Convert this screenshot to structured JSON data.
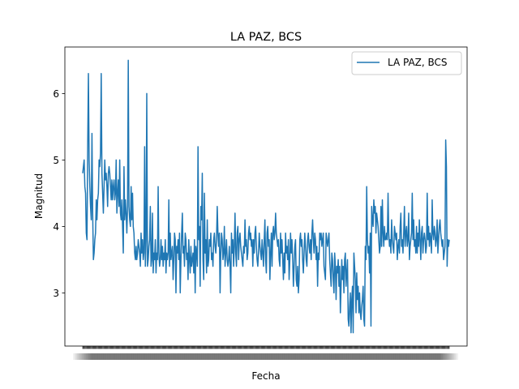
{
  "chart_data": {
    "type": "line",
    "title": "LA PAZ, BCS",
    "xlabel": "Fecha",
    "ylabel": "Magnitud",
    "ylim": [
      2.2,
      6.7
    ],
    "yticks": [
      3,
      4,
      5,
      6
    ],
    "grid": false,
    "legend": "top-right",
    "x_tick_labels_overlapping": true,
    "series": [
      {
        "name": "LA PAZ, BCS",
        "color": "#1f77b4",
        "values": [
          4.8,
          4.9,
          5.0,
          4.6,
          4.5,
          3.9,
          3.8,
          5.2,
          6.3,
          5.0,
          4.6,
          4.3,
          4.1,
          5.4,
          4.2,
          3.5,
          3.6,
          3.8,
          3.9,
          4.4,
          4.1,
          4.4,
          4.5,
          5.0,
          4.9,
          5.1,
          6.3,
          4.8,
          4.5,
          4.2,
          4.6,
          5.0,
          4.7,
          4.8,
          4.6,
          4.3,
          4.8,
          4.9,
          4.8,
          4.6,
          4.4,
          4.7,
          4.4,
          4.6,
          4.7,
          4.4,
          4.5,
          5.0,
          4.2,
          4.5,
          4.7,
          4.3,
          5.0,
          4.2,
          4.1,
          4.4,
          4.0,
          3.6,
          4.9,
          4.1,
          4.4,
          4.2,
          3.9,
          4.3,
          6.5,
          4.3,
          4.1,
          4.0,
          4.6,
          4.1,
          4.5,
          4.0,
          3.9,
          3.6,
          3.5,
          3.7,
          3.5,
          3.6,
          3.8,
          3.7,
          3.6,
          3.4,
          3.9,
          3.6,
          3.8,
          3.5,
          3.6,
          5.2,
          3.4,
          3.8,
          6.0,
          3.4,
          3.5,
          3.7,
          3.8,
          4.3,
          3.4,
          3.5,
          4.2,
          3.3,
          3.6,
          3.5,
          3.8,
          3.3,
          3.6,
          3.5,
          4.6,
          3.6,
          3.4,
          3.5,
          3.8,
          3.5,
          3.7,
          3.4,
          3.6,
          3.5,
          3.8,
          3.3,
          3.6,
          3.5,
          3.6,
          4.4,
          3.4,
          3.9,
          3.5,
          3.6,
          3.7,
          3.2,
          3.5,
          3.9,
          3.8,
          3.0,
          3.7,
          3.6,
          3.8,
          3.5,
          3.9,
          3.0,
          3.5,
          3.9,
          4.2,
          3.6,
          3.7,
          3.4,
          3.9,
          3.8,
          3.5,
          3.6,
          3.2,
          3.8,
          3.5,
          3.3,
          3.7,
          3.4,
          3.5,
          3.6,
          3.3,
          3.8,
          3.0,
          3.7,
          3.6,
          3.4,
          5.2,
          3.8,
          4.0,
          3.1,
          4.3,
          4.1,
          4.8,
          3.5,
          3.2,
          4.5,
          3.6,
          3.8,
          3.3,
          4.1,
          3.4,
          3.5,
          3.8,
          3.7,
          3.9,
          3.5,
          3.6,
          3.4,
          3.8,
          3.9,
          3.7,
          3.6,
          3.8,
          4.3,
          3.9,
          3.7,
          3.9,
          3.0,
          3.6,
          3.9,
          3.8,
          3.5,
          3.6,
          4.0,
          3.4,
          3.6,
          3.8,
          3.5,
          3.4,
          3.5,
          3.7,
          3.4,
          3.0,
          3.9,
          3.6,
          3.8,
          3.4,
          3.7,
          4.2,
          3.6,
          3.4,
          3.9,
          4.0,
          3.5,
          3.8,
          3.9,
          3.7,
          3.6,
          3.5,
          3.4,
          3.7,
          3.6,
          4.1,
          3.7,
          3.8,
          3.5,
          3.6,
          3.9,
          4.0,
          3.8,
          3.9,
          3.7,
          3.8,
          3.4,
          3.8,
          3.6,
          3.9,
          4.0,
          3.7,
          3.5,
          3.4,
          3.6,
          3.9,
          3.7,
          3.6,
          3.5,
          3.8,
          3.6,
          3.4,
          3.8,
          4.1,
          3.5,
          3.3,
          3.9,
          4.0,
          3.7,
          3.8,
          3.2,
          3.6,
          3.9,
          3.4,
          3.9,
          4.0,
          3.8,
          3.9,
          4.2,
          3.9,
          3.8,
          3.7,
          3.8,
          3.5,
          3.4,
          3.9,
          3.6,
          3.8,
          3.5,
          3.2,
          3.6,
          3.3,
          3.9,
          3.6,
          3.7,
          3.5,
          3.8,
          3.2,
          3.5,
          3.9,
          3.6,
          3.8,
          3.5,
          3.1,
          3.4,
          3.7,
          3.8,
          3.2,
          3.1,
          3.4,
          3.0,
          3.2,
          3.8,
          3.9,
          3.7,
          3.8,
          3.5,
          3.3,
          3.6,
          3.9,
          3.7,
          3.5,
          3.4,
          3.8,
          3.9,
          3.7,
          3.6,
          3.8,
          3.5,
          3.9,
          4.1,
          3.8,
          3.6,
          3.9,
          3.8,
          3.5,
          3.7,
          3.1,
          3.6,
          3.5,
          3.9,
          3.8,
          3.9,
          3.7,
          3.8,
          3.9,
          3.4,
          3.3,
          3.2,
          3.9,
          3.8,
          3.7,
          3.8,
          3.9,
          3.5,
          3.3,
          3.1,
          3.6,
          3.5,
          3.2,
          3.0,
          3.6,
          3.4,
          2.9,
          3.4,
          3.3,
          3.5,
          3.1,
          3.4,
          2.7,
          3.1,
          3.5,
          3.2,
          3.4,
          3.0,
          3.5,
          3.6,
          3.1,
          3.3,
          3.5,
          2.6,
          2.5,
          2.8,
          3.0,
          2.4,
          2.9,
          3.1,
          2.4,
          3.6,
          3.4,
          3.2,
          2.7,
          3.3,
          2.9,
          3.1,
          2.7,
          3.0,
          2.7,
          2.6,
          2.8,
          2.9,
          3.1,
          2.6,
          2.5,
          3.7,
          3.5,
          4.6,
          3.8,
          3.6,
          3.7,
          3.3,
          3.9,
          2.5,
          4.3,
          4.1,
          4.0,
          4.4,
          4.2,
          4.3,
          3.9,
          4.2,
          4.1,
          4.0,
          3.8,
          3.6,
          3.7,
          4.3,
          3.7,
          4.4,
          3.9,
          3.7,
          4.0,
          3.8,
          3.8,
          3.9,
          3.8,
          4.5,
          3.9,
          3.7,
          3.8,
          3.6,
          4.1,
          3.8,
          3.7,
          3.6,
          4.0,
          3.9,
          3.8,
          3.9,
          3.5,
          3.7,
          3.8,
          3.6,
          4.0,
          4.2,
          3.7,
          3.8,
          3.6,
          3.9,
          4.3,
          3.7,
          3.9,
          4.0,
          3.7,
          3.8,
          4.2,
          3.5,
          3.7,
          3.8,
          3.9,
          4.5,
          3.8,
          4.1,
          3.7,
          3.8,
          3.6,
          4.0,
          3.6,
          3.9,
          3.7,
          4.1,
          3.8,
          3.5,
          3.9,
          4.0,
          3.6,
          3.8,
          3.9,
          3.8,
          3.6,
          3.7,
          4.5,
          3.8,
          4.0,
          3.7,
          3.9,
          3.8,
          3.6,
          4.4,
          3.9,
          3.8,
          4.0,
          3.9,
          3.7,
          3.8,
          4.1,
          3.6,
          3.8,
          4.0,
          4.1,
          3.9,
          3.8,
          3.7,
          3.8,
          3.5,
          3.6,
          3.7,
          5.3,
          4.9,
          3.4,
          3.8,
          3.7,
          3.8
        ]
      }
    ]
  }
}
